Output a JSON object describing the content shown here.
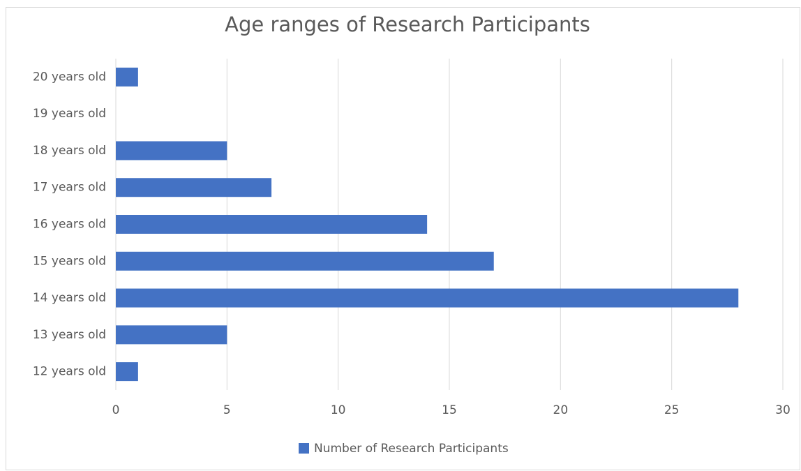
{
  "chart_data": {
    "type": "bar",
    "orientation": "horizontal",
    "title": "Age ranges of Research Participants",
    "categories": [
      "12 years old",
      "13 years old",
      "14 years old",
      "15 years old",
      "16 years old",
      "17 years old",
      "18 years old",
      "19 years old",
      "20 years old"
    ],
    "series": [
      {
        "name": "Number of Research Participants",
        "color": "#4472c4",
        "values": [
          1,
          5,
          28,
          17,
          14,
          7,
          5,
          0,
          1
        ]
      }
    ],
    "xlim": [
      0,
      30
    ],
    "xticks": [
      0,
      5,
      10,
      15,
      20,
      25,
      30
    ],
    "grid": true,
    "legend": "bottom"
  }
}
